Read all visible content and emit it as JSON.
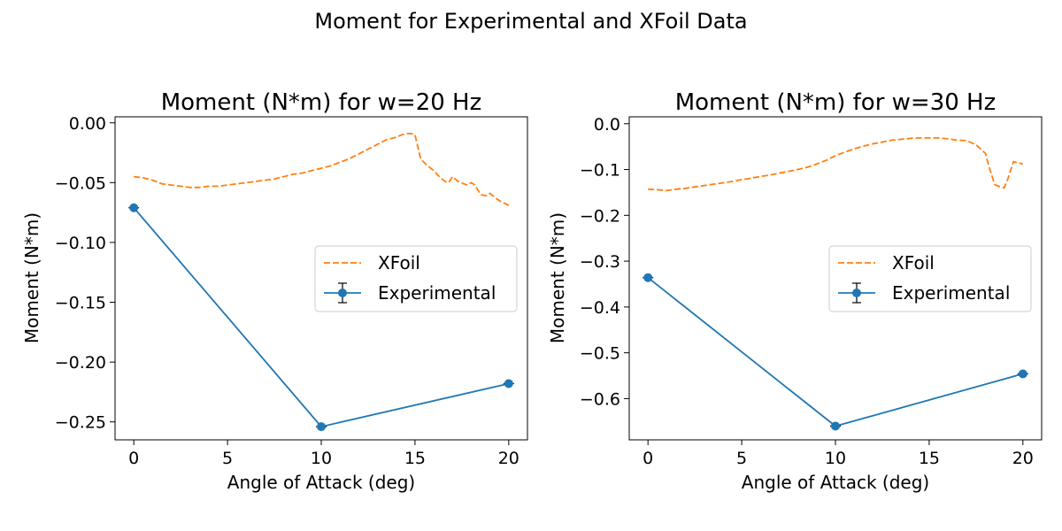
{
  "figure": {
    "suptitle": "Moment for Experimental and XFoil Data"
  },
  "colors": {
    "experimental": "#1f77b4",
    "xfoil": "#ff7f0e",
    "legend_border": "#cccccc"
  },
  "chart_data": [
    {
      "type": "line",
      "title": "Moment (N*m) for w=20 Hz",
      "xlabel": "Angle of Attack (deg)",
      "ylabel": "Moment (N*m)",
      "xlim": [
        -1,
        21
      ],
      "ylim": [
        -0.265,
        0.005
      ],
      "xticks": [
        0,
        5,
        10,
        15,
        20
      ],
      "xtick_labels": [
        "0",
        "5",
        "10",
        "15",
        "20"
      ],
      "yticks": [
        0.0,
        -0.05,
        -0.1,
        -0.15,
        -0.2,
        -0.25
      ],
      "ytick_labels": [
        "0.00",
        "−0.05",
        "−0.10",
        "−0.15",
        "−0.20",
        "−0.25"
      ],
      "grid": false,
      "legend": "center-right",
      "series": [
        {
          "name": "XFoil",
          "style": "dashed",
          "x": [
            0,
            0.5,
            1,
            1.5,
            2,
            2.5,
            3,
            3.5,
            4,
            4.5,
            5,
            5.5,
            6,
            6.5,
            7,
            7.5,
            8,
            8.5,
            9,
            9.5,
            10,
            10.5,
            11,
            11.5,
            12,
            12.5,
            13,
            13.5,
            14,
            14.3,
            14.6,
            14.8,
            15,
            15.3,
            15.6,
            16,
            16.3,
            16.6,
            16.8,
            17,
            17.3,
            17.6,
            17.8,
            18,
            18.2,
            18.5,
            18.8,
            19,
            19.3,
            19.6,
            20
          ],
          "y": [
            -0.045,
            -0.046,
            -0.048,
            -0.051,
            -0.052,
            -0.053,
            -0.054,
            -0.054,
            -0.053,
            -0.053,
            -0.052,
            -0.051,
            -0.05,
            -0.049,
            -0.048,
            -0.047,
            -0.045,
            -0.043,
            -0.042,
            -0.04,
            -0.038,
            -0.036,
            -0.033,
            -0.03,
            -0.026,
            -0.022,
            -0.018,
            -0.014,
            -0.012,
            -0.01,
            -0.009,
            -0.009,
            -0.01,
            -0.03,
            -0.035,
            -0.04,
            -0.045,
            -0.049,
            -0.05,
            -0.045,
            -0.049,
            -0.051,
            -0.052,
            -0.05,
            -0.052,
            -0.06,
            -0.061,
            -0.059,
            -0.063,
            -0.066,
            -0.069
          ]
        },
        {
          "name": "Experimental",
          "style": "solid-marker-errorbar",
          "x": [
            0,
            10,
            20
          ],
          "y": [
            -0.071,
            -0.254,
            -0.218
          ]
        }
      ]
    },
    {
      "type": "line",
      "title": "Moment (N*m) for w=30 Hz",
      "xlabel": "Angle of Attack (deg)",
      "ylabel": "Moment (N*m)",
      "xlim": [
        -1,
        21
      ],
      "ylim": [
        -0.69,
        0.015
      ],
      "xticks": [
        0,
        5,
        10,
        15,
        20
      ],
      "xtick_labels": [
        "0",
        "5",
        "10",
        "15",
        "20"
      ],
      "yticks": [
        0.0,
        -0.1,
        -0.2,
        -0.3,
        -0.4,
        -0.5,
        -0.6
      ],
      "ytick_labels": [
        "0.0",
        "−0.1",
        "−0.2",
        "−0.3",
        "−0.4",
        "−0.5",
        "−0.6"
      ],
      "grid": false,
      "legend": "center-right",
      "series": [
        {
          "name": "XFoil",
          "style": "dashed",
          "x": [
            0,
            0.5,
            1,
            1.5,
            2,
            2.5,
            3,
            3.5,
            4,
            4.5,
            5,
            5.5,
            6,
            6.5,
            7,
            7.5,
            8,
            8.5,
            9,
            9.5,
            10,
            10.5,
            11,
            11.5,
            12,
            12.5,
            13,
            13.5,
            14,
            14.5,
            15,
            15.5,
            16,
            16.5,
            17,
            17.5,
            18,
            18.2,
            18.5,
            18.8,
            19,
            19.2,
            19.5,
            20
          ],
          "y": [
            -0.143,
            -0.144,
            -0.146,
            -0.143,
            -0.141,
            -0.138,
            -0.135,
            -0.132,
            -0.129,
            -0.126,
            -0.122,
            -0.119,
            -0.115,
            -0.112,
            -0.108,
            -0.104,
            -0.1,
            -0.095,
            -0.088,
            -0.08,
            -0.07,
            -0.062,
            -0.055,
            -0.049,
            -0.044,
            -0.04,
            -0.036,
            -0.034,
            -0.032,
            -0.031,
            -0.031,
            -0.031,
            -0.033,
            -0.036,
            -0.037,
            -0.046,
            -0.065,
            -0.095,
            -0.133,
            -0.138,
            -0.14,
            -0.12,
            -0.083,
            -0.088
          ]
        },
        {
          "name": "Experimental",
          "style": "solid-marker-errorbar",
          "x": [
            0,
            10,
            20
          ],
          "y": [
            -0.336,
            -0.66,
            -0.546
          ]
        }
      ]
    }
  ]
}
